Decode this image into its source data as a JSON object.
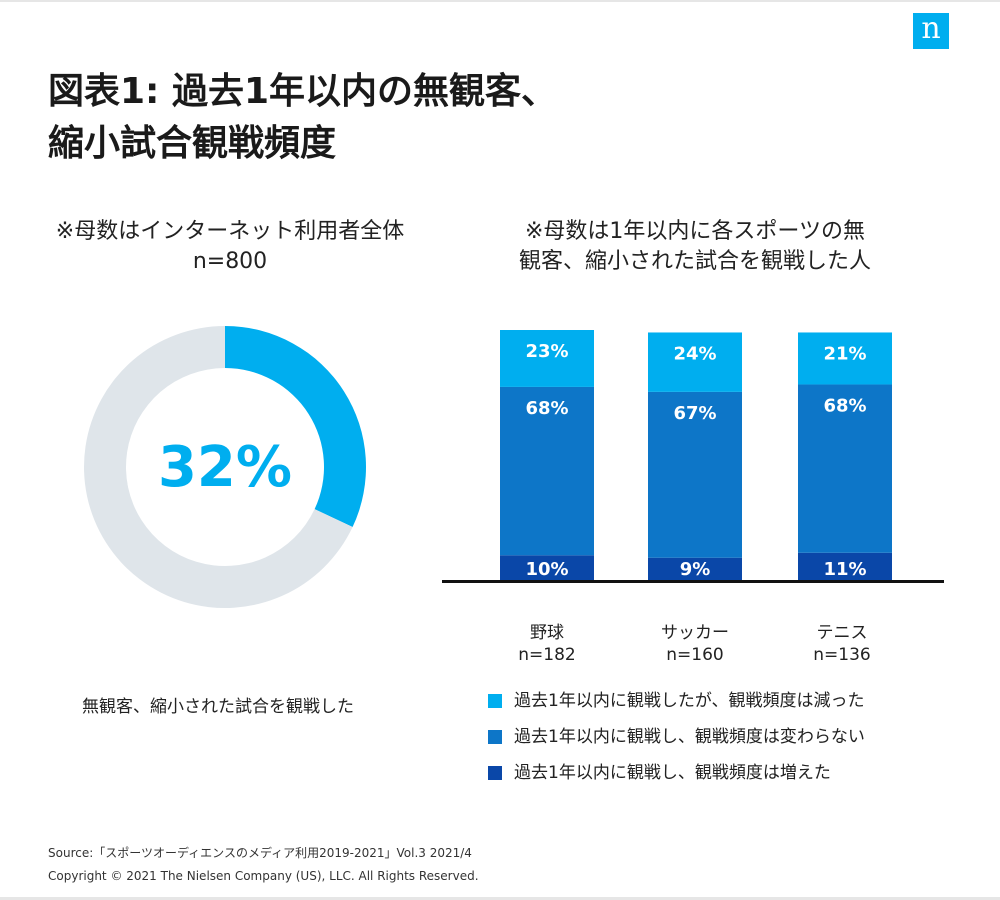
{
  "brand": {
    "logo_text": "n"
  },
  "title": {
    "line1": "図表1: 過去1年以内の無観客、",
    "line2": "縮小試合観戦頻度"
  },
  "left_note": {
    "line1": "※母数はインターネット利用者全体",
    "line2": "n=800"
  },
  "right_note": {
    "line1": "※母数は1年以内に各スポーツの無",
    "line2": "観客、縮小された試合を観戦した人"
  },
  "chart_data": [
    {
      "type": "pie",
      "subtype": "donut",
      "title": "",
      "values": [
        32,
        68
      ],
      "center_label": "32%",
      "caption": "無観客、縮小された試合を観戦した",
      "colors": [
        "#00aeef",
        "#dfe5ea"
      ]
    },
    {
      "type": "bar",
      "stacked": true,
      "categories": [
        "野球",
        "サッカー",
        "テニス"
      ],
      "category_n": [
        "n=182",
        "n=160",
        "n=136"
      ],
      "series": [
        {
          "name": "過去1年以内に観戦し、観戦頻度は増えた",
          "values": [
            10,
            9,
            11
          ],
          "labels": [
            "10%",
            "9%",
            "11%"
          ],
          "color": "#0a47a8"
        },
        {
          "name": "過去1年以内に観戦し、観戦頻度は変わらない",
          "values": [
            68,
            67,
            68
          ],
          "labels": [
            "68%",
            "67%",
            "68%"
          ],
          "color": "#0d76c8"
        },
        {
          "name": "過去1年以内に観戦したが、観戦頻度は減った",
          "values": [
            23,
            24,
            21
          ],
          "labels": [
            "23%",
            "24%",
            "21%"
          ],
          "color": "#00aeef"
        }
      ],
      "ylim": [
        0,
        101
      ],
      "legend": [
        {
          "label": "過去1年以内に観戦したが、観戦頻度は減った",
          "color": "#00aeef"
        },
        {
          "label": "過去1年以内に観戦し、観戦頻度は変わらない",
          "color": "#0d76c8"
        },
        {
          "label": "過去1年以内に観戦し、観戦頻度は増えた",
          "color": "#0a47a8"
        }
      ]
    }
  ],
  "footer": {
    "source": "Source:「スポーツオーディエンスのメディア利用2019-2021」Vol.3 2021/4",
    "copyright": "Copyright © 2021 The Nielsen Company (US), LLC. All Rights Reserved."
  }
}
